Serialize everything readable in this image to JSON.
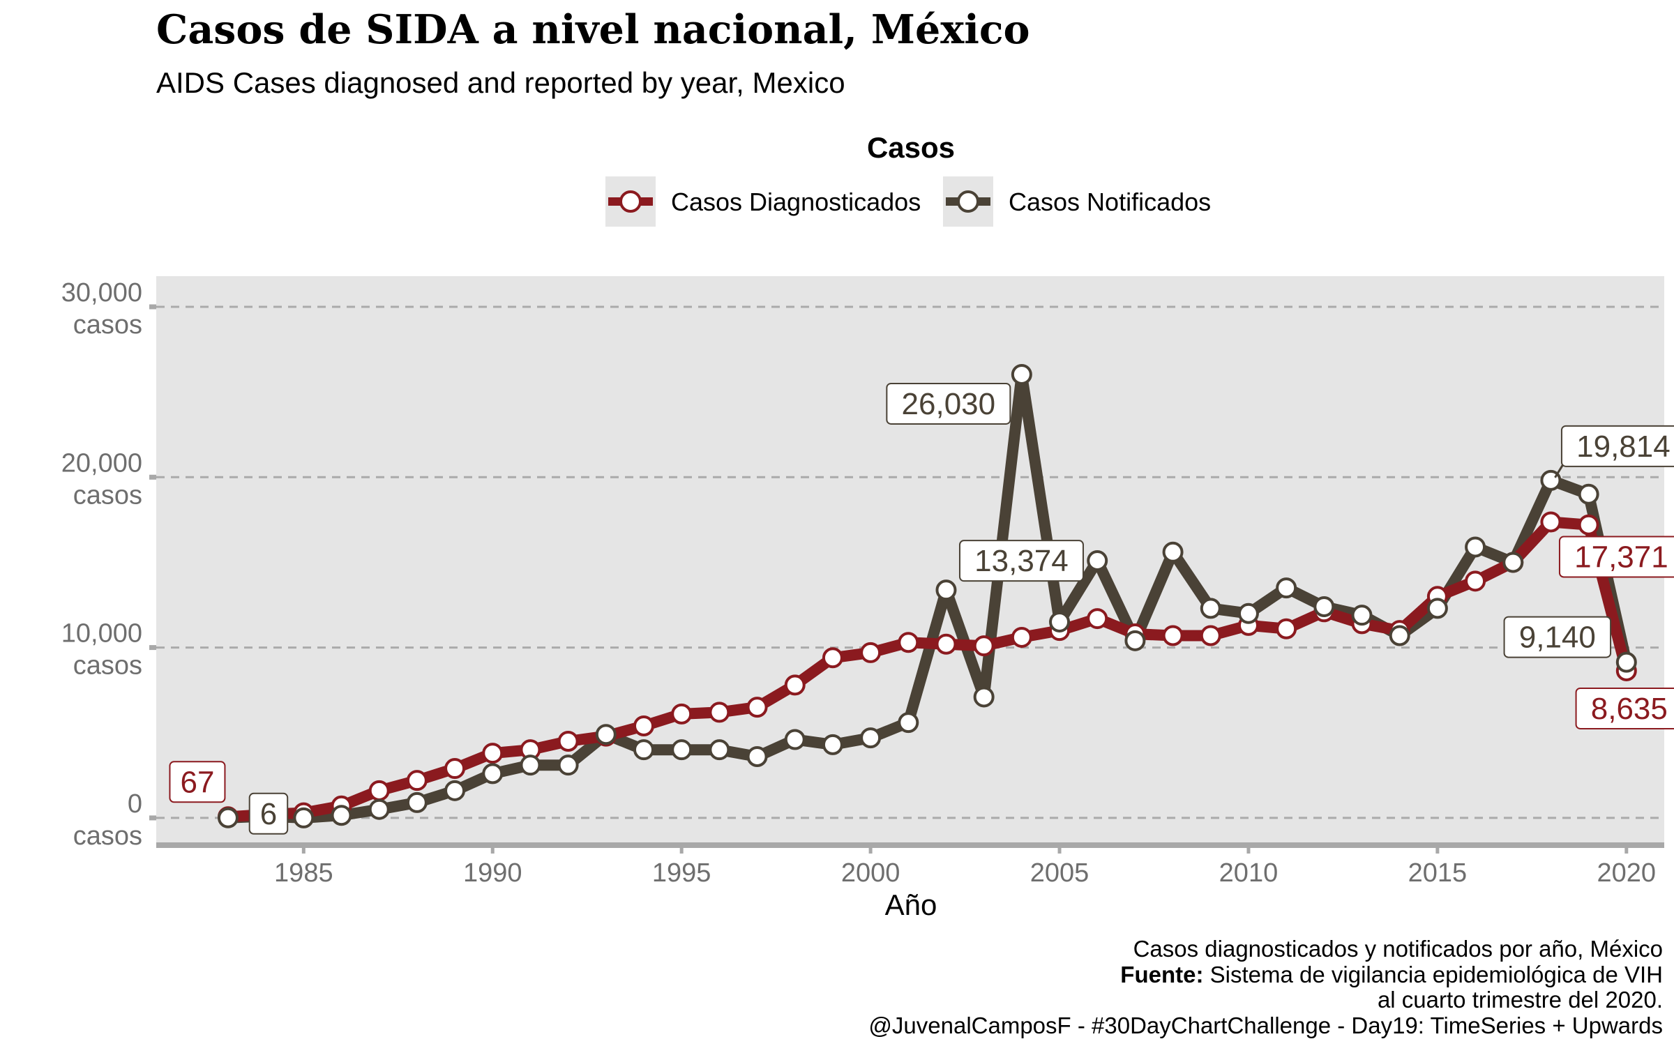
{
  "header": {
    "title": "Casos de SIDA a nivel nacional, México",
    "subtitle": "AIDS Cases diagnosed and reported by year, Mexico"
  },
  "legend": {
    "title": "Casos",
    "items": [
      {
        "label": "Casos Diagnosticados",
        "color": "#8b1a1f"
      },
      {
        "label": "Casos Notificados",
        "color": "#4a4236"
      }
    ]
  },
  "caption": {
    "line1": "Casos diagnosticados y notificados por año, México",
    "source_bold": "Fuente:",
    "source_rest": "Sistema de vigilancia epidemiológica de VIH",
    "line3": "al cuarto trimestre del 2020.",
    "line4": "@JuvenalCamposF - #30DayChartChallenge - Day19: TimeSeries + Upwards"
  },
  "colors": {
    "panel": "#e5e5e5",
    "diagnosticados": "#8b1a1f",
    "notificados": "#4a4236",
    "grid": "#aaaaaa",
    "tick_text": "#6e6e6e"
  },
  "chart_data": {
    "type": "line",
    "xlabel": "Año",
    "ylabel": "",
    "xlim": [
      1981.1,
      2021
    ],
    "ylim": [
      -1600,
      31800
    ],
    "x_ticks": [
      1985,
      1990,
      1995,
      2000,
      2005,
      2010,
      2015,
      2020
    ],
    "y_ticks": [
      0,
      10000,
      20000,
      30000
    ],
    "y_tick_labels": [
      [
        "0",
        "casos"
      ],
      [
        "10,000",
        "casos"
      ],
      [
        "20,000",
        "casos"
      ],
      [
        "30,000",
        "casos"
      ]
    ],
    "grid": "horizontal dashed",
    "legend_position": "top",
    "series": [
      {
        "name": "Casos Diagnosticados",
        "color": "#8b1a1f",
        "x": [
          1983,
          1984,
          1985,
          1986,
          1987,
          1988,
          1989,
          1990,
          1991,
          1992,
          1993,
          1994,
          1995,
          1996,
          1997,
          1998,
          1999,
          2000,
          2001,
          2002,
          2003,
          2004,
          2005,
          2006,
          2007,
          2008,
          2009,
          2010,
          2011,
          2012,
          2013,
          2014,
          2015,
          2016,
          2017,
          2018,
          2019,
          2020
        ],
        "values": [
          67,
          200,
          300,
          700,
          1600,
          2200,
          2900,
          3800,
          4000,
          4500,
          4800,
          5400,
          6100,
          6200,
          6500,
          7800,
          9400,
          9700,
          10300,
          10200,
          10100,
          10600,
          11000,
          11700,
          10800,
          10700,
          10700,
          11300,
          11100,
          12100,
          11400,
          11000,
          13000,
          13900,
          15000,
          17371,
          17200,
          8635
        ]
      },
      {
        "name": "Casos Notificados",
        "color": "#4a4236",
        "x": [
          1983,
          1984,
          1985,
          1986,
          1987,
          1988,
          1989,
          1990,
          1991,
          1992,
          1993,
          1994,
          1995,
          1996,
          1997,
          1998,
          1999,
          2000,
          2001,
          2002,
          2003,
          2004,
          2005,
          2006,
          2007,
          2008,
          2009,
          2010,
          2011,
          2012,
          2013,
          2014,
          2015,
          2016,
          2017,
          2018,
          2019,
          2020
        ],
        "values": [
          6,
          100,
          0,
          150,
          500,
          900,
          1600,
          2600,
          3100,
          3100,
          4900,
          4000,
          4000,
          4000,
          3600,
          4600,
          4300,
          4700,
          5600,
          13374,
          7100,
          26030,
          11500,
          15100,
          10400,
          15600,
          12300,
          12000,
          13500,
          12400,
          11900,
          10700,
          12300,
          15900,
          15000,
          19814,
          19000,
          9140
        ]
      }
    ],
    "annotations": [
      {
        "series": 0,
        "year": 1983,
        "text": "67"
      },
      {
        "series": 1,
        "year": 1983,
        "text": "6"
      },
      {
        "series": 1,
        "year": 2002,
        "text": "13,374"
      },
      {
        "series": 1,
        "year": 2004,
        "text": "26,030"
      },
      {
        "series": 1,
        "year": 2018,
        "text": "19,814"
      },
      {
        "series": 0,
        "year": 2018,
        "text": "17,371"
      },
      {
        "series": 1,
        "year": 2020,
        "text": "9,140"
      },
      {
        "series": 0,
        "year": 2020,
        "text": "8,635"
      }
    ]
  }
}
